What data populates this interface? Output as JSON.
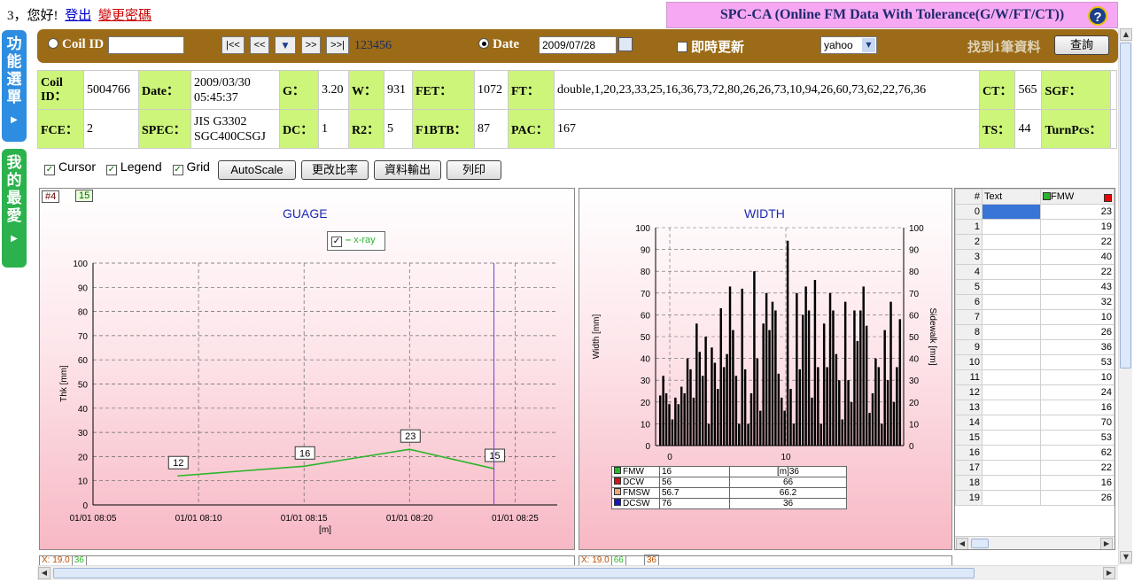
{
  "header": {
    "greeting": "3，您好!",
    "logout": "登出",
    "change_password": "變更密碼",
    "app_title": "SPC-CA (Online FM Data With Tolerance(G/W/FT/CT))",
    "help": "?"
  },
  "sidebar": {
    "menu_tab": "功能選單",
    "favorites_tab": "我的最愛"
  },
  "toolbar": {
    "coil_id_label": "Coil ID",
    "coil_id_value": "",
    "nav_first": "|<<",
    "nav_prev": "<<",
    "nav_next": ">>",
    "nav_last": ">>|",
    "record_number": "123456",
    "date_label": "Date",
    "date_value": "2009/07/28",
    "live_update_label": "即時更新",
    "source_selected": "yahoo",
    "found_text": "找到1筆資料",
    "query_button": "查詢"
  },
  "info": {
    "row1": [
      {
        "label": "Coil ID：",
        "value": "5004766"
      },
      {
        "label": "Date：",
        "value": "2009/03/30 05:45:37"
      },
      {
        "label": "G：",
        "value": "3.20"
      },
      {
        "label": "W：",
        "value": "931"
      },
      {
        "label": "FET：",
        "value": "1072"
      },
      {
        "label": "FT：",
        "value": "double,1,20,23,33,25,16,36,73,72,80,26,26,73,10,94,26,60,73,62,22,76,36"
      },
      {
        "label": "CT：",
        "value": "565"
      },
      {
        "label": "SGF：",
        "value": ""
      }
    ],
    "row2": [
      {
        "label": "FCE：",
        "value": "2"
      },
      {
        "label": "SPEC：",
        "value": "JIS G3302 SGC400CSGJ"
      },
      {
        "label": "DC：",
        "value": "1"
      },
      {
        "label": "R2：",
        "value": "5"
      },
      {
        "label": "F1BTB：",
        "value": "87"
      },
      {
        "label": "PAC：",
        "value": "167"
      },
      {
        "label": "TS：",
        "value": "44"
      },
      {
        "label": "TurnPcs：",
        "value": ""
      }
    ]
  },
  "options": {
    "cursor": "Cursor",
    "legend": "Legend",
    "grid": "Grid",
    "autoscale": "AutoScale",
    "change_ratio": "更改比率",
    "export": "資料輸出",
    "print": "列印"
  },
  "colors": {
    "toolbar": "#9b6b17",
    "label_cell": "#ccf57a",
    "title_bg": "#f7a8f2",
    "series_green": "#2ab52a"
  },
  "guage_chart": {
    "badge_id": "#4",
    "badge_value": "15",
    "chart_data": {
      "type": "line",
      "title": "GUAGE",
      "xlabel": "[m]",
      "ylabel": "Thk [mm]",
      "ylim": [
        0,
        100
      ],
      "yticks": [
        0,
        10,
        20,
        30,
        40,
        50,
        60,
        70,
        80,
        90,
        100
      ],
      "xticks": [
        "01/01 08:05",
        "01/01 08:10",
        "01/01 08:15",
        "01/01 08:20",
        "01/01 08:25"
      ],
      "legend": "x-ray",
      "grid": true,
      "series": [
        {
          "name": "x-ray",
          "x": [
            "08:09",
            "08:15",
            "08:20",
            "08:24"
          ],
          "values": [
            12,
            16,
            23,
            15
          ]
        }
      ],
      "cursor_x": "08:24"
    }
  },
  "width_chart": {
    "chart_data": {
      "type": "bar",
      "title": "WIDTH",
      "xlabel": "[m]",
      "ylabel": "Width [mm]",
      "y2label": "Sidewalk [mm]",
      "ylim": [
        0,
        100
      ],
      "yticks": [
        0,
        10,
        20,
        30,
        40,
        50,
        60,
        70,
        80,
        90,
        100
      ],
      "xticks": [
        "0",
        "10"
      ],
      "grid": true,
      "values": [
        23,
        32,
        24,
        19,
        12,
        22,
        19,
        27,
        24,
        40,
        35,
        22,
        56,
        43,
        32,
        50,
        10,
        45,
        38,
        26,
        63,
        36,
        42,
        73,
        53,
        32,
        10,
        72,
        35,
        10,
        24,
        80,
        40,
        16,
        56,
        70,
        53,
        66,
        62,
        33,
        22,
        16,
        94,
        26,
        10,
        70,
        35,
        60,
        73,
        62,
        22,
        76,
        36,
        10,
        56,
        36,
        70,
        62,
        42,
        30,
        12,
        66,
        30,
        20,
        62,
        48,
        62,
        73,
        55,
        15,
        24,
        40,
        36,
        10,
        53,
        30,
        66,
        20,
        36,
        58
      ],
      "legend_table": [
        {
          "name": "FMW",
          "color": "#2ab52a",
          "v1": "16",
          "v2": "[m]36"
        },
        {
          "name": "DCW",
          "color": "#d01515",
          "v1": "56",
          "v2": "66"
        },
        {
          "name": "FMSW",
          "color": "#e8a878",
          "v1": "56.7",
          "v2": "66.2"
        },
        {
          "name": "DCSW",
          "color": "#1515c8",
          "v1": "76",
          "v2": "36"
        }
      ]
    }
  },
  "data_grid": {
    "hash_header": "#",
    "text_header": "Text",
    "fmw_header": "FMW",
    "rows": [
      {
        "n": "0",
        "v": "23"
      },
      {
        "n": "1",
        "v": "19"
      },
      {
        "n": "2",
        "v": "22"
      },
      {
        "n": "3",
        "v": "40"
      },
      {
        "n": "4",
        "v": "22"
      },
      {
        "n": "5",
        "v": "43"
      },
      {
        "n": "6",
        "v": "32"
      },
      {
        "n": "7",
        "v": "10"
      },
      {
        "n": "8",
        "v": "26"
      },
      {
        "n": "9",
        "v": "36"
      },
      {
        "n": "10",
        "v": "53"
      },
      {
        "n": "11",
        "v": "10"
      },
      {
        "n": "12",
        "v": "24"
      },
      {
        "n": "13",
        "v": "16"
      },
      {
        "n": "14",
        "v": "70"
      },
      {
        "n": "15",
        "v": "53"
      },
      {
        "n": "16",
        "v": "62"
      },
      {
        "n": "17",
        "v": "22"
      },
      {
        "n": "18",
        "v": "16"
      },
      {
        "n": "19",
        "v": "26"
      }
    ]
  },
  "readouts": {
    "guage_x": "X: 19.0",
    "guage_v": "36",
    "width_x": "X: 19.0",
    "width_v1": "66",
    "width_v2": "36"
  }
}
